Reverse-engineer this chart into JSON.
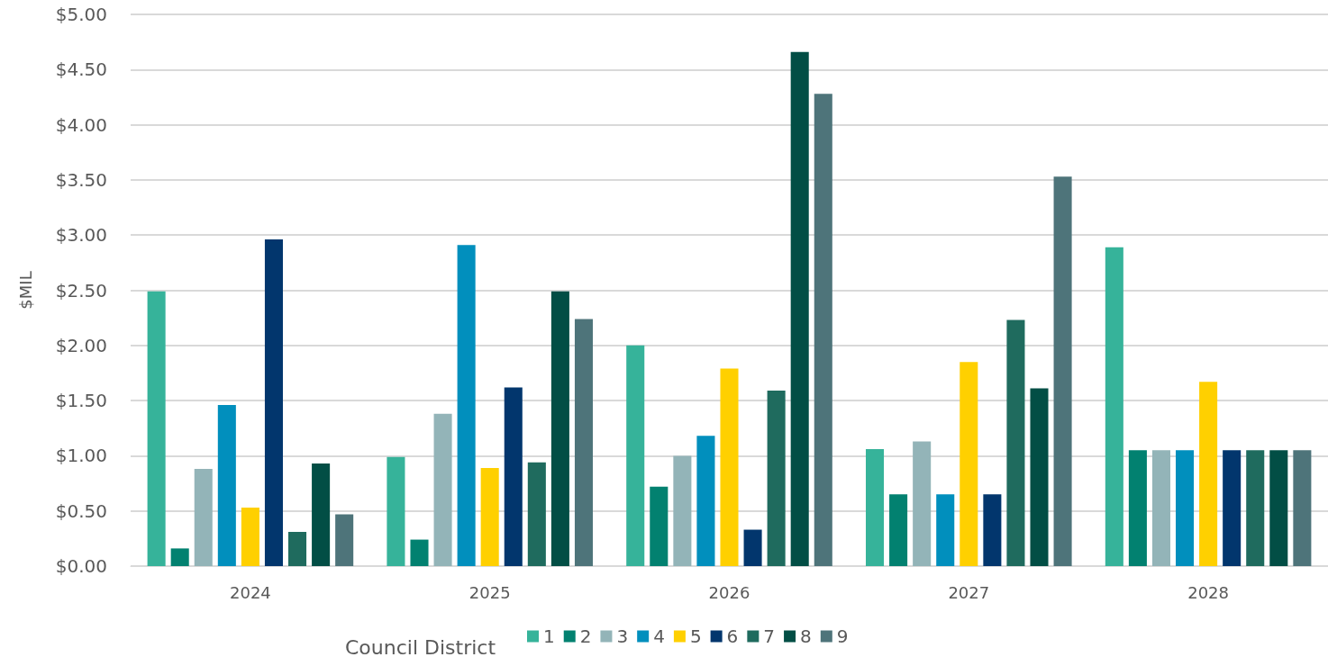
{
  "chart_data": {
    "type": "bar",
    "ylabel": "$MIL",
    "legend_title": "Council District",
    "categories": [
      "2024",
      "2025",
      "2026",
      "2027",
      "2028"
    ],
    "series": [
      {
        "name": "1",
        "color": "#36b39a",
        "values": [
          2.49,
          0.99,
          2.0,
          1.06,
          2.89
        ]
      },
      {
        "name": "2",
        "color": "#028170",
        "values": [
          0.16,
          0.24,
          0.72,
          0.65,
          1.05
        ]
      },
      {
        "name": "3",
        "color": "#93b4b8",
        "values": [
          0.88,
          1.38,
          1.0,
          1.13,
          1.05
        ]
      },
      {
        "name": "4",
        "color": "#018fbd",
        "values": [
          1.46,
          2.91,
          1.18,
          0.65,
          1.05
        ]
      },
      {
        "name": "5",
        "color": "#ffd000",
        "values": [
          0.53,
          0.89,
          1.79,
          1.85,
          1.67
        ]
      },
      {
        "name": "6",
        "color": "#02366d",
        "values": [
          2.96,
          1.62,
          0.33,
          0.65,
          1.05
        ]
      },
      {
        "name": "7",
        "color": "#1f6b5e",
        "values": [
          0.31,
          0.94,
          1.59,
          2.23,
          1.05
        ]
      },
      {
        "name": "8",
        "color": "#024e45",
        "values": [
          0.93,
          2.49,
          4.66,
          1.61,
          1.05
        ]
      },
      {
        "name": "9",
        "color": "#4e747a",
        "values": [
          0.47,
          2.24,
          4.28,
          3.53,
          1.05
        ]
      }
    ],
    "ylim": [
      0,
      5
    ],
    "yticks": [
      {
        "value": 0,
        "label": "$0.00"
      },
      {
        "value": 0.5,
        "label": "$0.50"
      },
      {
        "value": 1,
        "label": "$1.00"
      },
      {
        "value": 1.5,
        "label": "$1.50"
      },
      {
        "value": 2,
        "label": "$2.00"
      },
      {
        "value": 2.5,
        "label": "$2.50"
      },
      {
        "value": 3,
        "label": "$3.00"
      },
      {
        "value": 3.5,
        "label": "$3.50"
      },
      {
        "value": 4,
        "label": "$4.00"
      },
      {
        "value": 4.5,
        "label": "$4.50"
      },
      {
        "value": 5,
        "label": "$5.00"
      }
    ],
    "grid": "y",
    "legend": "bottom"
  }
}
